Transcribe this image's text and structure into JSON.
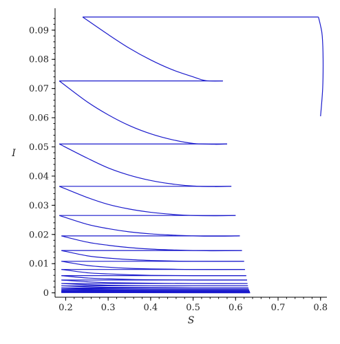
{
  "chart_data": {
    "type": "line",
    "title": "",
    "xlabel": "S",
    "ylabel": "I",
    "xlim": [
      0.175,
      0.815
    ],
    "ylim": [
      -0.0015,
      0.0975
    ],
    "xticks": [
      0.2,
      0.3,
      0.4,
      0.5,
      0.6,
      0.7,
      0.8
    ],
    "xtick_labels": [
      "0.2",
      "0.3",
      "0.4",
      "0.5",
      "0.6",
      "0.7",
      "0.8"
    ],
    "yticks": [
      0,
      0.01,
      0.02,
      0.03,
      0.04,
      0.05,
      0.06,
      0.07,
      0.08,
      0.09
    ],
    "ytick_labels": [
      "0",
      "0.01",
      "0.02",
      "0.03",
      "0.04",
      "0.05",
      "0.06",
      "0.07",
      "0.08",
      "0.09"
    ],
    "grid": false,
    "legend": "none",
    "color": "#1a1acc",
    "series": [
      {
        "points": [
          [
            0.8,
            0.0605
          ],
          [
            0.805,
            0.07
          ],
          [
            0.806,
            0.08
          ],
          [
            0.804,
            0.088
          ],
          [
            0.8,
            0.0915
          ],
          [
            0.795,
            0.0945
          ]
        ]
      },
      {
        "points": [
          [
            0.795,
            0.0945
          ],
          [
            0.24,
            0.0945
          ]
        ]
      },
      {
        "points": [
          [
            0.24,
            0.0945
          ],
          [
            0.3,
            0.0885
          ],
          [
            0.35,
            0.0838
          ],
          [
            0.4,
            0.0798
          ],
          [
            0.45,
            0.0765
          ],
          [
            0.5,
            0.074
          ],
          [
            0.53,
            0.0727
          ],
          [
            0.57,
            0.0726
          ]
        ]
      },
      {
        "points": [
          [
            0.57,
            0.0726
          ],
          [
            0.185,
            0.0726
          ]
        ]
      },
      {
        "points": [
          [
            0.185,
            0.0726
          ],
          [
            0.25,
            0.0655
          ],
          [
            0.3,
            0.061
          ],
          [
            0.35,
            0.0573
          ],
          [
            0.4,
            0.0545
          ],
          [
            0.45,
            0.0525
          ],
          [
            0.5,
            0.0512
          ],
          [
            0.55,
            0.0509
          ],
          [
            0.58,
            0.051
          ]
        ]
      },
      {
        "points": [
          [
            0.58,
            0.051
          ],
          [
            0.185,
            0.051
          ]
        ]
      },
      {
        "points": [
          [
            0.185,
            0.051
          ],
          [
            0.25,
            0.0462
          ],
          [
            0.3,
            0.0428
          ],
          [
            0.35,
            0.0403
          ],
          [
            0.4,
            0.0385
          ],
          [
            0.45,
            0.0373
          ],
          [
            0.5,
            0.0366
          ],
          [
            0.55,
            0.0364
          ],
          [
            0.59,
            0.0365
          ]
        ]
      },
      {
        "points": [
          [
            0.59,
            0.0365
          ],
          [
            0.185,
            0.0365
          ]
        ]
      },
      {
        "points": [
          [
            0.185,
            0.0365
          ],
          [
            0.25,
            0.0327
          ],
          [
            0.3,
            0.0303
          ],
          [
            0.35,
            0.0287
          ],
          [
            0.4,
            0.0276
          ],
          [
            0.45,
            0.0269
          ],
          [
            0.5,
            0.0265
          ],
          [
            0.55,
            0.0264
          ],
          [
            0.6,
            0.0265
          ]
        ]
      },
      {
        "points": [
          [
            0.6,
            0.0265
          ],
          [
            0.185,
            0.0265
          ]
        ]
      },
      {
        "points": [
          [
            0.185,
            0.0265
          ],
          [
            0.25,
            0.0235
          ],
          [
            0.3,
            0.022
          ],
          [
            0.35,
            0.0209
          ],
          [
            0.4,
            0.0202
          ],
          [
            0.45,
            0.0198
          ],
          [
            0.5,
            0.0195
          ],
          [
            0.55,
            0.0194
          ],
          [
            0.61,
            0.0195
          ]
        ]
      },
      {
        "points": [
          [
            0.61,
            0.0195
          ],
          [
            0.19,
            0.0195
          ]
        ]
      },
      {
        "points": [
          [
            0.19,
            0.0195
          ],
          [
            0.25,
            0.0174
          ],
          [
            0.3,
            0.0163
          ],
          [
            0.35,
            0.0155
          ],
          [
            0.4,
            0.015
          ],
          [
            0.45,
            0.0147
          ],
          [
            0.5,
            0.0145
          ],
          [
            0.55,
            0.0144
          ],
          [
            0.615,
            0.0145
          ]
        ]
      },
      {
        "points": [
          [
            0.615,
            0.0145
          ],
          [
            0.19,
            0.0145
          ]
        ]
      },
      {
        "points": [
          [
            0.19,
            0.0145
          ],
          [
            0.25,
            0.0127
          ],
          [
            0.3,
            0.0119
          ],
          [
            0.35,
            0.0114
          ],
          [
            0.4,
            0.0111
          ],
          [
            0.45,
            0.0109
          ],
          [
            0.5,
            0.0108
          ],
          [
            0.62,
            0.0108
          ]
        ]
      },
      {
        "points": [
          [
            0.62,
            0.0108
          ],
          [
            0.19,
            0.0108
          ]
        ]
      },
      {
        "points": [
          [
            0.19,
            0.0108
          ],
          [
            0.25,
            0.0094
          ],
          [
            0.3,
            0.0088
          ],
          [
            0.35,
            0.0084
          ],
          [
            0.4,
            0.0082
          ],
          [
            0.45,
            0.0081
          ],
          [
            0.5,
            0.008
          ],
          [
            0.622,
            0.008
          ]
        ]
      },
      {
        "points": [
          [
            0.622,
            0.008
          ],
          [
            0.19,
            0.008
          ]
        ]
      },
      {
        "points": [
          [
            0.19,
            0.008
          ],
          [
            0.25,
            0.0069
          ],
          [
            0.3,
            0.0065
          ],
          [
            0.35,
            0.0062
          ],
          [
            0.4,
            0.006
          ],
          [
            0.5,
            0.0059
          ],
          [
            0.625,
            0.0059
          ]
        ]
      },
      {
        "points": [
          [
            0.625,
            0.0059
          ],
          [
            0.19,
            0.0059
          ]
        ]
      },
      {
        "points": [
          [
            0.19,
            0.0059
          ],
          [
            0.25,
            0.0051
          ],
          [
            0.3,
            0.0048
          ],
          [
            0.35,
            0.0046
          ],
          [
            0.4,
            0.0045
          ],
          [
            0.5,
            0.0044
          ],
          [
            0.627,
            0.0044
          ]
        ]
      },
      {
        "points": [
          [
            0.627,
            0.0044
          ],
          [
            0.19,
            0.0044
          ]
        ]
      },
      {
        "points": [
          [
            0.19,
            0.0044
          ],
          [
            0.25,
            0.0038
          ],
          [
            0.3,
            0.0035
          ],
          [
            0.4,
            0.0033
          ],
          [
            0.5,
            0.0032
          ],
          [
            0.628,
            0.0032
          ]
        ]
      },
      {
        "points": [
          [
            0.628,
            0.0032
          ],
          [
            0.19,
            0.0032
          ]
        ]
      },
      {
        "points": [
          [
            0.19,
            0.0032
          ],
          [
            0.25,
            0.0028
          ],
          [
            0.3,
            0.0026
          ],
          [
            0.4,
            0.0024
          ],
          [
            0.5,
            0.0024
          ],
          [
            0.629,
            0.0024
          ]
        ]
      },
      {
        "points": [
          [
            0.629,
            0.0024
          ],
          [
            0.19,
            0.0024
          ]
        ]
      },
      {
        "points": [
          [
            0.19,
            0.0024
          ],
          [
            0.25,
            0.0021
          ],
          [
            0.3,
            0.0019
          ],
          [
            0.4,
            0.0018
          ],
          [
            0.5,
            0.0017
          ],
          [
            0.63,
            0.0017
          ]
        ]
      },
      {
        "points": [
          [
            0.63,
            0.0017
          ],
          [
            0.19,
            0.0017
          ]
        ]
      },
      {
        "points": [
          [
            0.19,
            0.0017
          ],
          [
            0.25,
            0.0015
          ],
          [
            0.3,
            0.0014
          ],
          [
            0.4,
            0.0013
          ],
          [
            0.631,
            0.0013
          ]
        ]
      },
      {
        "points": [
          [
            0.631,
            0.0013
          ],
          [
            0.19,
            0.0013
          ]
        ]
      },
      {
        "points": [
          [
            0.19,
            0.0013
          ],
          [
            0.25,
            0.0011
          ],
          [
            0.3,
            0.001
          ],
          [
            0.4,
            0.0009
          ],
          [
            0.632,
            0.0009
          ]
        ]
      },
      {
        "points": [
          [
            0.632,
            0.0009
          ],
          [
            0.19,
            0.0009
          ]
        ]
      },
      {
        "points": [
          [
            0.19,
            0.0009
          ],
          [
            0.25,
            0.0008
          ],
          [
            0.3,
            0.0007
          ],
          [
            0.632,
            0.0007
          ]
        ]
      },
      {
        "points": [
          [
            0.632,
            0.0007
          ],
          [
            0.19,
            0.0007
          ]
        ]
      },
      {
        "points": [
          [
            0.19,
            0.0007
          ],
          [
            0.3,
            0.0005
          ],
          [
            0.633,
            0.0005
          ]
        ]
      },
      {
        "points": [
          [
            0.633,
            0.0005
          ],
          [
            0.19,
            0.0005
          ]
        ]
      },
      {
        "points": [
          [
            0.19,
            0.0005
          ],
          [
            0.3,
            0.0004
          ],
          [
            0.633,
            0.0004
          ]
        ]
      },
      {
        "points": [
          [
            0.633,
            0.0004
          ],
          [
            0.19,
            0.0004
          ]
        ]
      },
      {
        "points": [
          [
            0.19,
            0.0004
          ],
          [
            0.3,
            0.0003
          ],
          [
            0.633,
            0.0003
          ]
        ]
      },
      {
        "points": [
          [
            0.633,
            0.0003
          ],
          [
            0.19,
            0.0003
          ]
        ]
      },
      {
        "points": [
          [
            0.19,
            0.0003
          ],
          [
            0.633,
            0.0002
          ]
        ]
      },
      {
        "points": [
          [
            0.633,
            0.0002
          ],
          [
            0.19,
            0.0002
          ]
        ]
      },
      {
        "points": [
          [
            0.19,
            0.0002
          ],
          [
            0.634,
            0.0001
          ]
        ]
      },
      {
        "points": [
          [
            0.634,
            0.0001
          ],
          [
            0.19,
            0.0001
          ]
        ]
      },
      {
        "points": [
          [
            0.19,
            0.0001
          ],
          [
            0.634,
            0.0
          ]
        ]
      }
    ]
  }
}
